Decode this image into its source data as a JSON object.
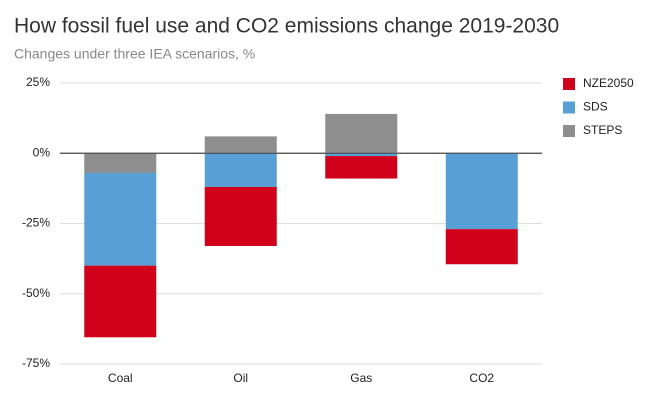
{
  "chart_data": {
    "type": "stacked_bar",
    "title": "How fossil fuel use and CO2 emissions change 2019-2030",
    "subtitle": "Changes under three IEA scenarios, %",
    "categories": [
      "Coal",
      "Oil",
      "Gas",
      "CO2"
    ],
    "series": [
      {
        "name": "NZE2050",
        "color": "#d0021b",
        "values": [
          -25.5,
          -21,
          -8,
          -12.5
        ]
      },
      {
        "name": "SDS",
        "color": "#589fd6",
        "values": [
          -33,
          -12,
          -1,
          -27
        ]
      },
      {
        "name": "STEPS",
        "color": "#8e8e8e",
        "values": [
          -7,
          6,
          14,
          0
        ]
      }
    ],
    "ylim": [
      -75,
      25
    ],
    "yticks": [
      {
        "value": 25,
        "label": "25%"
      },
      {
        "value": 0,
        "label": "0%"
      },
      {
        "value": -25,
        "label": "-25%"
      },
      {
        "value": -50,
        "label": "-50%"
      },
      {
        "value": -75,
        "label": "-75%"
      }
    ],
    "grid": true,
    "legend": "right"
  }
}
